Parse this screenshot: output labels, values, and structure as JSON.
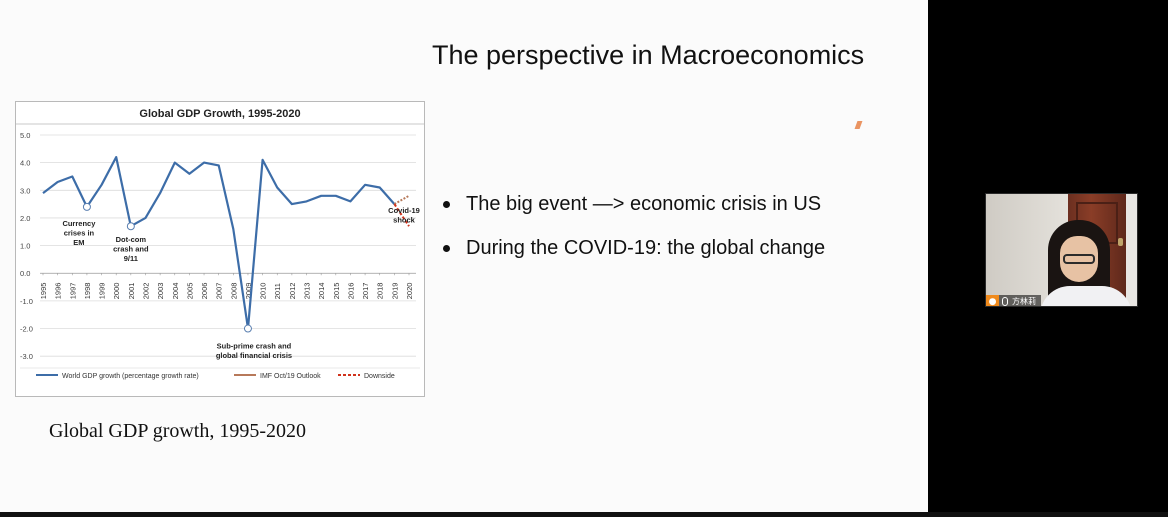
{
  "slide": {
    "title": "The perspective in Macroeconomics",
    "caption": "Global GDP growth, 1995-2020",
    "bullets": [
      "The big event —> economic crisis in US",
      "During the COVID-19: the global change"
    ]
  },
  "webcam": {
    "participant_name": "方林莉",
    "person_icon": "person-icon",
    "mic_icon": "microphone-icon"
  },
  "chart_data": {
    "type": "line",
    "title": "Global GDP Growth, 1995-2020",
    "ylim": [
      -3.5,
      5.0
    ],
    "yticks": [
      "5.0",
      "4.0",
      "3.0",
      "2.0",
      "1.0",
      "0.0",
      "-1.0",
      "-2.0",
      "-3.0"
    ],
    "ytick_values": [
      5,
      4,
      3,
      2,
      1,
      0,
      -1,
      -2,
      -3
    ],
    "grid": true,
    "legend_position": "bottom",
    "x": [
      "1995",
      "1996",
      "1997",
      "1998",
      "1999",
      "2000",
      "2001",
      "2002",
      "2003",
      "2004",
      "2005",
      "2006",
      "2007",
      "2008",
      "2009",
      "2010",
      "2011",
      "2012",
      "2013",
      "2014",
      "2015",
      "2016",
      "2017",
      "2018",
      "2019",
      "2020"
    ],
    "series": [
      {
        "name": "World GDP growth (percentage growth rate)",
        "color": "#3d6da8",
        "x": [
          "1995",
          "1996",
          "1997",
          "1998",
          "1999",
          "2000",
          "2001",
          "2002",
          "2003",
          "2004",
          "2005",
          "2006",
          "2007",
          "2008",
          "2009",
          "2010",
          "2011",
          "2012",
          "2013",
          "2014",
          "2015",
          "2016",
          "2017",
          "2018",
          "2019"
        ],
        "values": [
          2.9,
          3.3,
          3.5,
          2.4,
          3.2,
          4.2,
          1.7,
          2.0,
          2.9,
          4.0,
          3.6,
          4.0,
          3.9,
          1.6,
          -2.0,
          4.1,
          3.1,
          2.5,
          2.6,
          2.8,
          2.8,
          2.6,
          3.2,
          3.1,
          2.5
        ]
      },
      {
        "name": "IMF Oct/19 Outlook",
        "color": "#b7795a",
        "x": [
          "2019",
          "2020"
        ],
        "values": [
          2.5,
          2.8
        ]
      },
      {
        "name": "Downside",
        "color": "#d0331c",
        "x": [
          "2019",
          "2020"
        ],
        "values": [
          2.5,
          1.7
        ]
      }
    ],
    "annotations": [
      {
        "x": "1998",
        "y": 2.4,
        "lines": [
          "Currency",
          "crises in",
          "EM"
        ]
      },
      {
        "x": "2001",
        "y": 1.7,
        "lines": [
          "Dot-com",
          "crash and",
          "9/11"
        ]
      },
      {
        "x": "2009",
        "y": -2.0,
        "lines": [
          "Sub-prime  crash and",
          "global financial crisis"
        ]
      },
      {
        "x": "2020",
        "y": 1.7,
        "lines": [
          "Covid-19",
          "shock"
        ]
      }
    ]
  }
}
